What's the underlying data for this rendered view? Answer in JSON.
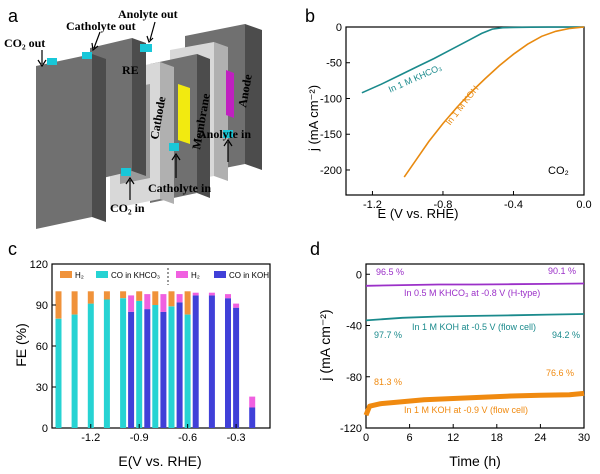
{
  "panel_labels": {
    "a": "a",
    "b": "b",
    "c": "c",
    "d": "d"
  },
  "panel_a": {
    "labels": {
      "co2_out": "CO₂ out",
      "catholyte_out": "Catholyte out",
      "anolyte_out": "Anolyte out",
      "re": "RE",
      "cathode": "Cathode",
      "membrane": "Membrane",
      "anode": "Anode",
      "anolyte_in": "Anolyte in",
      "catholyte_in": "Catholyte in",
      "co2_in": "CO₂ in"
    },
    "colors": {
      "plate": "#707070",
      "frame": "#d8d8d8",
      "cathode": "#3a2fd0",
      "membrane": "#f2ea10",
      "anode": "#c020c0",
      "port": "#19c7d8"
    }
  },
  "chart_data": [
    {
      "panel": "b",
      "type": "line",
      "xlabel": "E (V vs. RHE)",
      "ylabel": "j (mA cm⁻²)",
      "xlim": [
        -1.35,
        0.0
      ],
      "ylim": [
        -235,
        0
      ],
      "xticks": [
        -1.2,
        -0.8,
        -0.4,
        0.0
      ],
      "xtick_labels": [
        "-1.2",
        "-0.8",
        "-0.4",
        "0.0"
      ],
      "yticks": [
        0,
        -50,
        -100,
        -150,
        -200
      ],
      "ytick_labels": [
        "0",
        "-50",
        "-100",
        "-150",
        "-200"
      ],
      "annotation": "CO₂",
      "series": [
        {
          "name": "In 1 M KHCO₃",
          "color": "#1a8a8c",
          "x": [
            -1.26,
            -1.15,
            -1.05,
            -0.95,
            -0.85,
            -0.75,
            -0.65,
            -0.58,
            -0.52,
            -0.46,
            -0.4,
            -0.3,
            -0.2,
            -0.1,
            0.0
          ],
          "y": [
            -92,
            -80,
            -68,
            -56,
            -44,
            -31,
            -18,
            -9,
            -3,
            -1,
            -0.5,
            -0.3,
            -0.2,
            -0.1,
            0
          ]
        },
        {
          "name": "In 1 M KOH",
          "color": "#e88a10",
          "x": [
            -1.02,
            -0.95,
            -0.88,
            -0.8,
            -0.72,
            -0.64,
            -0.56,
            -0.48,
            -0.4,
            -0.32,
            -0.24,
            -0.16,
            -0.08,
            0.0
          ],
          "y": [
            -210,
            -185,
            -160,
            -135,
            -112,
            -91,
            -72,
            -54,
            -38,
            -24,
            -13,
            -6,
            -2,
            0
          ]
        }
      ]
    },
    {
      "panel": "c",
      "type": "bar",
      "xlabel": "E(V vs. RHE)",
      "ylabel": "FE (%)",
      "xlim": [
        -1.44,
        -0.09
      ],
      "ylim": [
        0,
        120
      ],
      "xticks": [
        -1.2,
        -0.9,
        -0.6,
        -0.3
      ],
      "xtick_labels": [
        "-1.2",
        "-0.9",
        "-0.6",
        "-0.3"
      ],
      "yticks": [
        0,
        30,
        60,
        90,
        120
      ],
      "ytick_labels": [
        "0",
        "30",
        "60",
        "90",
        "120"
      ],
      "legend": [
        "H₂",
        "CO in KHCO₃",
        "H₂",
        "CO in KOH"
      ],
      "series": [
        {
          "name": "CO in KHCO₃",
          "color": "#26d3d3",
          "x": [
            -1.4,
            -1.3,
            -1.2,
            -1.1,
            -1.0,
            -0.9,
            -0.8,
            -0.7,
            -0.6
          ],
          "co": [
            80,
            83,
            91,
            94,
            95,
            93,
            90,
            89,
            83
          ],
          "h2": [
            20,
            17,
            9,
            6,
            5,
            7,
            10,
            11,
            17
          ],
          "h2_color": "#f0923a"
        },
        {
          "name": "CO in KOH",
          "color": "#4040d8",
          "x": [
            -0.95,
            -0.85,
            -0.75,
            -0.65,
            -0.55,
            -0.45,
            -0.35,
            -0.3,
            -0.2
          ],
          "co": [
            85,
            87,
            85,
            92,
            97,
            97,
            95,
            88,
            15
          ],
          "h2": [
            12,
            11,
            13,
            6,
            2,
            2,
            3,
            3,
            8
          ],
          "h2_color": "#f060e0"
        }
      ]
    },
    {
      "panel": "d",
      "type": "line",
      "xlabel": "Time (h)",
      "ylabel": "j (mA cm⁻²)",
      "xlim": [
        0,
        30
      ],
      "ylim": [
        -120,
        8
      ],
      "xticks": [
        0,
        6,
        12,
        18,
        24,
        30
      ],
      "xtick_labels": [
        "0",
        "6",
        "12",
        "18",
        "24",
        "30"
      ],
      "yticks": [
        0,
        -40,
        -80,
        -120
      ],
      "ytick_labels": [
        "0",
        "-40",
        "-80",
        "-120"
      ],
      "series": [
        {
          "name": "In 0.5 M KHCO₃ at -0.8 V (H-type)",
          "color": "#9b30c8",
          "x": [
            0,
            5,
            10,
            15,
            20,
            25,
            30
          ],
          "y": [
            -9,
            -8.5,
            -8,
            -8,
            -7.8,
            -7.5,
            -7.2
          ],
          "fe_start": "96.5 %",
          "fe_end": "90.1 %"
        },
        {
          "name": "In 1 M KOH at -0.5 V (flow cell)",
          "color": "#1a8a8c",
          "x": [
            0,
            5,
            10,
            15,
            20,
            25,
            30
          ],
          "y": [
            -36,
            -34,
            -33,
            -32.5,
            -32,
            -31.5,
            -31
          ],
          "fe_start": "97.7 %",
          "fe_end": "94.2 %"
        },
        {
          "name": "In 1 M KOH at -0.9 V (flow cell)",
          "color": "#f08a10",
          "x": [
            0,
            0.5,
            2,
            4,
            8,
            12,
            16,
            20,
            24,
            28,
            30
          ],
          "y": [
            -110,
            -103,
            -101,
            -100,
            -98,
            -97,
            -96,
            -95,
            -94.5,
            -94,
            -93
          ],
          "fe_start": "81.3 %",
          "fe_end": "76.6 %"
        }
      ]
    }
  ]
}
